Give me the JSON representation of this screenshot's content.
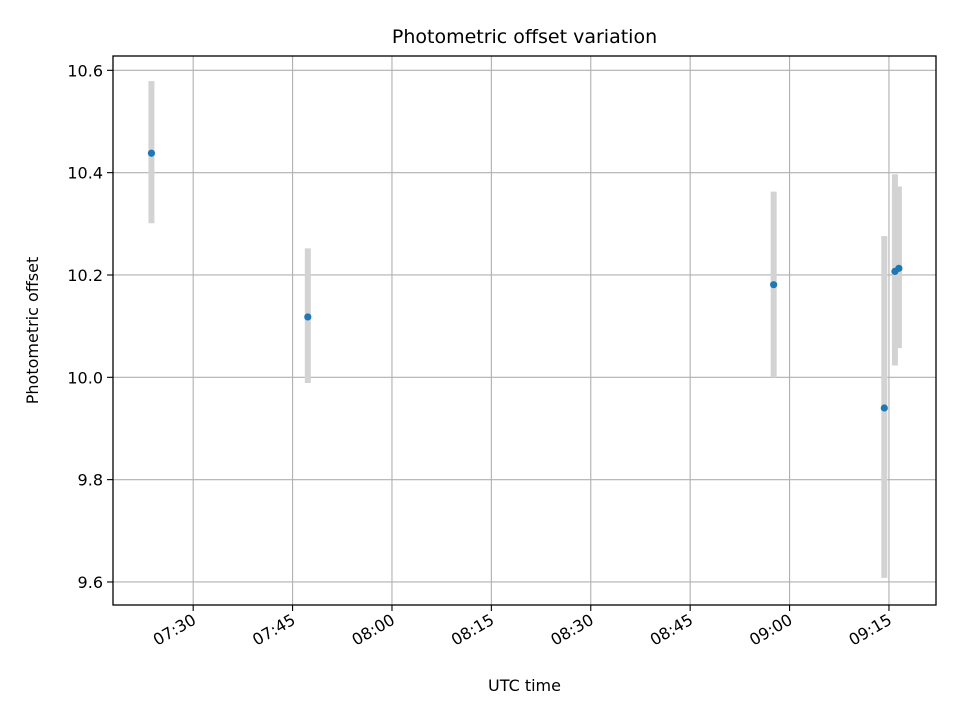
{
  "chart_data": {
    "type": "scatter",
    "title": "Photometric offset variation",
    "xlabel": "UTC time",
    "ylabel": "Photometric offset",
    "x_unit": "minutes",
    "x_ticks": [
      "07:30",
      "07:45",
      "08:00",
      "08:15",
      "08:30",
      "08:45",
      "09:00",
      "09:15"
    ],
    "x_tick_values": [
      450,
      465,
      480,
      495,
      510,
      525,
      540,
      555
    ],
    "xlim": [
      437.9,
      562.1
    ],
    "y_ticks": [
      "9.6",
      "9.8",
      "10.0",
      "10.2",
      "10.4",
      "10.6"
    ],
    "y_tick_values": [
      9.6,
      9.8,
      10.0,
      10.2,
      10.4,
      10.6
    ],
    "ylim": [
      9.555,
      10.628
    ],
    "grid": true,
    "marker_color": "#1f77b4",
    "errorbar_color": "#d3d3d3",
    "points": [
      {
        "x": 443.7,
        "y": 10.438,
        "err_low": 0.137,
        "err_high": 0.141
      },
      {
        "x": 467.3,
        "y": 10.118,
        "err_low": 0.129,
        "err_high": 0.134
      },
      {
        "x": 537.6,
        "y": 10.181,
        "err_low": 0.181,
        "err_high": 0.182
      },
      {
        "x": 554.3,
        "y": 9.94,
        "err_low": 0.332,
        "err_high": 0.336
      },
      {
        "x": 555.9,
        "y": 10.207,
        "err_low": 0.184,
        "err_high": 0.19
      },
      {
        "x": 556.5,
        "y": 10.213,
        "err_low": 0.156,
        "err_high": 0.16
      }
    ]
  }
}
